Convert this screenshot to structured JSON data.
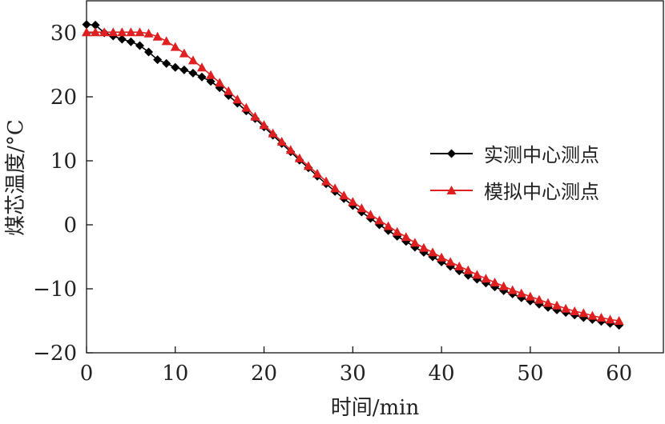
{
  "chart_data": {
    "type": "line",
    "xlabel": "时间/min",
    "ylabel": "煤芯温度/°C",
    "xlim": [
      0,
      65
    ],
    "ylim": [
      -20,
      35
    ],
    "xticks": [
      0,
      10,
      20,
      30,
      40,
      50,
      60
    ],
    "yticks": [
      30,
      20,
      10,
      0,
      -10,
      -20
    ],
    "xtick_labels": [
      "0",
      "10",
      "20",
      "30",
      "40",
      "50",
      "60"
    ],
    "ytick_labels": [
      "30",
      "20",
      "10",
      "0",
      "−10",
      "−20"
    ],
    "legend_position": "right",
    "series": [
      {
        "name": "实测中心测点",
        "color": "#000000",
        "marker": "diamond",
        "x": [
          0,
          1,
          2,
          3,
          4,
          5,
          6,
          7,
          8,
          9,
          10,
          11,
          12,
          13,
          14,
          15,
          16,
          17,
          18,
          19,
          20,
          21,
          22,
          23,
          24,
          25,
          26,
          27,
          28,
          29,
          30,
          31,
          32,
          33,
          34,
          35,
          36,
          37,
          38,
          39,
          40,
          41,
          42,
          43,
          44,
          45,
          46,
          47,
          48,
          49,
          50,
          51,
          52,
          53,
          54,
          55,
          56,
          57,
          58,
          59,
          60
        ],
        "y": [
          31.3,
          31.2,
          30.0,
          29.5,
          29.0,
          28.6,
          28.0,
          27.0,
          25.8,
          25.2,
          24.6,
          24.2,
          23.7,
          23.1,
          22.4,
          21.4,
          20.2,
          19.0,
          17.8,
          16.6,
          15.3,
          14.0,
          12.7,
          11.4,
          10.1,
          8.9,
          7.6,
          6.4,
          5.2,
          4.1,
          3.0,
          2.0,
          1.0,
          0.0,
          -0.9,
          -1.8,
          -2.6,
          -3.5,
          -4.3,
          -5.0,
          -5.8,
          -6.5,
          -7.2,
          -7.9,
          -8.5,
          -9.1,
          -9.7,
          -10.3,
          -10.8,
          -11.4,
          -11.9,
          -12.4,
          -12.9,
          -13.3,
          -13.7,
          -14.1,
          -14.5,
          -14.8,
          -15.1,
          -15.4,
          -15.7
        ]
      },
      {
        "name": "模拟中心测点",
        "color": "#e02020",
        "marker": "triangle",
        "x": [
          0,
          1,
          2,
          3,
          4,
          5,
          6,
          7,
          8,
          9,
          10,
          11,
          12,
          13,
          14,
          15,
          16,
          17,
          18,
          19,
          20,
          21,
          22,
          23,
          24,
          25,
          26,
          27,
          28,
          29,
          30,
          31,
          32,
          33,
          34,
          35,
          36,
          37,
          38,
          39,
          40,
          41,
          42,
          43,
          44,
          45,
          46,
          47,
          48,
          49,
          50,
          51,
          52,
          53,
          54,
          55,
          56,
          57,
          58,
          59,
          60
        ],
        "y": [
          30.1,
          30.1,
          30.1,
          30.1,
          30.1,
          30.1,
          30.1,
          29.9,
          29.4,
          28.7,
          27.8,
          26.8,
          25.7,
          24.6,
          23.4,
          22.2,
          20.9,
          19.6,
          18.3,
          16.9,
          15.6,
          14.3,
          13.0,
          11.7,
          10.4,
          9.2,
          8.0,
          6.8,
          5.7,
          4.6,
          3.6,
          2.6,
          1.6,
          0.7,
          -0.2,
          -1.1,
          -1.9,
          -2.8,
          -3.6,
          -4.3,
          -5.1,
          -5.8,
          -6.5,
          -7.1,
          -7.8,
          -8.4,
          -9.0,
          -9.6,
          -10.2,
          -10.7,
          -11.2,
          -11.7,
          -12.2,
          -12.6,
          -13.1,
          -13.5,
          -13.8,
          -14.2,
          -14.5,
          -14.8,
          -15.0
        ]
      }
    ]
  }
}
